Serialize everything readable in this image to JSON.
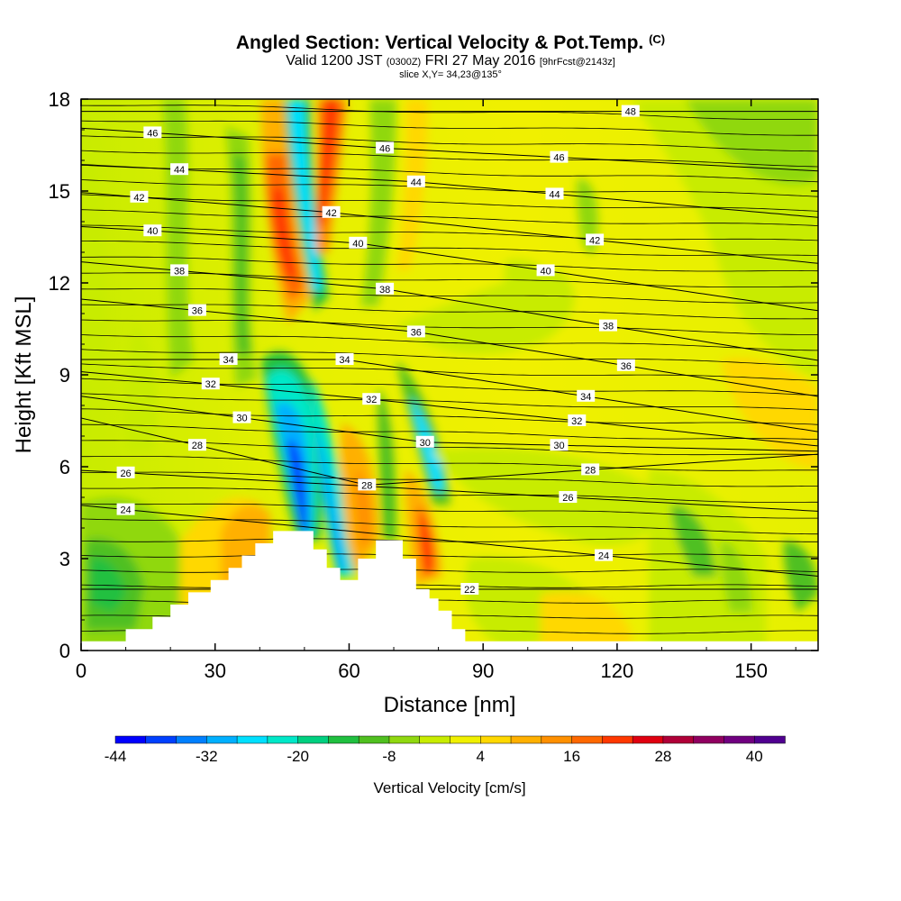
{
  "header": {
    "title": "Angled Section: Vertical Velocity & Pot.Temp.",
    "title_unit": "(C)",
    "valid_main": "Valid 1200 JST",
    "valid_utc": "(0300Z)",
    "valid_date": "FRI 27 May 2016",
    "forecast": "[9hrFcst@2143z]",
    "slice": "slice X,Y= 34,23@135°"
  },
  "chart_data": {
    "type": "heatmap",
    "xlabel": "Distance [nm]",
    "ylabel": "Height [Kft MSL]",
    "xlim": [
      0,
      165
    ],
    "ylim": [
      0,
      18
    ],
    "x_ticks": [
      0,
      30,
      60,
      90,
      120,
      150
    ],
    "y_ticks": [
      0,
      3,
      6,
      9,
      12,
      15,
      18
    ],
    "colorbar": {
      "label": "Vertical Velocity [cm/s]",
      "tick_labels": [
        "-44",
        "-32",
        "-20",
        "-8",
        "4",
        "16",
        "28",
        "40"
      ],
      "colors": [
        "#0000ff",
        "#0040ff",
        "#0080ff",
        "#00b0ff",
        "#00e0ff",
        "#00e8c8",
        "#00d080",
        "#20c040",
        "#50c020",
        "#90d810",
        "#c8ec00",
        "#f0f000",
        "#ffd800",
        "#ffb000",
        "#ff9000",
        "#ff6800",
        "#ff3800",
        "#e00010",
        "#b00038",
        "#900060",
        "#700080",
        "#500090"
      ]
    },
    "terrain": [
      [
        0,
        0.3
      ],
      [
        10,
        0.3
      ],
      [
        10,
        0.7
      ],
      [
        16,
        0.7
      ],
      [
        16,
        1.1
      ],
      [
        20,
        1.1
      ],
      [
        20,
        1.5
      ],
      [
        24,
        1.5
      ],
      [
        24,
        1.9
      ],
      [
        29,
        1.9
      ],
      [
        29,
        2.3
      ],
      [
        33,
        2.3
      ],
      [
        33,
        2.7
      ],
      [
        36,
        2.7
      ],
      [
        36,
        3.1
      ],
      [
        39,
        3.1
      ],
      [
        39,
        3.5
      ],
      [
        43,
        3.5
      ],
      [
        43,
        3.9
      ],
      [
        52,
        3.9
      ],
      [
        52,
        3.3
      ],
      [
        55,
        3.3
      ],
      [
        55,
        2.7
      ],
      [
        58,
        2.7
      ],
      [
        58,
        2.3
      ],
      [
        62,
        2.3
      ],
      [
        62,
        3.0
      ],
      [
        66,
        3.0
      ],
      [
        66,
        3.6
      ],
      [
        72,
        3.6
      ],
      [
        72,
        3.0
      ],
      [
        75,
        3.0
      ],
      [
        75,
        2.0
      ],
      [
        78,
        2.0
      ],
      [
        78,
        1.7
      ],
      [
        80,
        1.7
      ],
      [
        80,
        1.3
      ],
      [
        83,
        1.3
      ],
      [
        83,
        0.7
      ],
      [
        86,
        0.7
      ],
      [
        86,
        0.3
      ],
      [
        165,
        0.3
      ]
    ],
    "isentropes": [
      {
        "value": 22,
        "label_at": [
          87,
          2.0
        ]
      },
      {
        "value": 24,
        "label_at": [
          10,
          4.6
        ]
      },
      {
        "value": 24,
        "label_at": [
          117,
          3.1
        ]
      },
      {
        "value": 26,
        "label_at": [
          10,
          5.8
        ]
      },
      {
        "value": 26,
        "label_at": [
          109,
          5.0
        ]
      },
      {
        "value": 28,
        "label_at": [
          26,
          6.7
        ]
      },
      {
        "value": 28,
        "label_at": [
          64,
          5.4
        ]
      },
      {
        "value": 28,
        "label_at": [
          114,
          5.9
        ]
      },
      {
        "value": 30,
        "label_at": [
          36,
          7.6
        ]
      },
      {
        "value": 30,
        "label_at": [
          77,
          6.8
        ]
      },
      {
        "value": 30,
        "label_at": [
          107,
          6.7
        ]
      },
      {
        "value": 32,
        "label_at": [
          29,
          8.7
        ]
      },
      {
        "value": 32,
        "label_at": [
          65,
          8.2
        ]
      },
      {
        "value": 32,
        "label_at": [
          111,
          7.5
        ]
      },
      {
        "value": 34,
        "label_at": [
          33,
          9.5
        ]
      },
      {
        "value": 34,
        "label_at": [
          59,
          9.5
        ]
      },
      {
        "value": 34,
        "label_at": [
          113,
          8.3
        ]
      },
      {
        "value": 36,
        "label_at": [
          26,
          11.1
        ]
      },
      {
        "value": 36,
        "label_at": [
          75,
          10.4
        ]
      },
      {
        "value": 36,
        "label_at": [
          122,
          9.3
        ]
      },
      {
        "value": 38,
        "label_at": [
          22,
          12.4
        ]
      },
      {
        "value": 38,
        "label_at": [
          68,
          11.8
        ]
      },
      {
        "value": 38,
        "label_at": [
          118,
          10.6
        ]
      },
      {
        "value": 40,
        "label_at": [
          16,
          13.7
        ]
      },
      {
        "value": 40,
        "label_at": [
          62,
          13.3
        ]
      },
      {
        "value": 40,
        "label_at": [
          104,
          12.4
        ]
      },
      {
        "value": 42,
        "label_at": [
          13,
          14.8
        ]
      },
      {
        "value": 42,
        "label_at": [
          56,
          14.3
        ]
      },
      {
        "value": 42,
        "label_at": [
          115,
          13.4
        ]
      },
      {
        "value": 44,
        "label_at": [
          22,
          15.7
        ]
      },
      {
        "value": 44,
        "label_at": [
          75,
          15.3
        ]
      },
      {
        "value": 44,
        "label_at": [
          106,
          14.9
        ]
      },
      {
        "value": 46,
        "label_at": [
          16,
          16.9
        ]
      },
      {
        "value": 46,
        "label_at": [
          68,
          16.4
        ]
      },
      {
        "value": 46,
        "label_at": [
          107,
          16.1
        ]
      },
      {
        "value": 48,
        "label_at": [
          123,
          17.6
        ]
      }
    ]
  }
}
